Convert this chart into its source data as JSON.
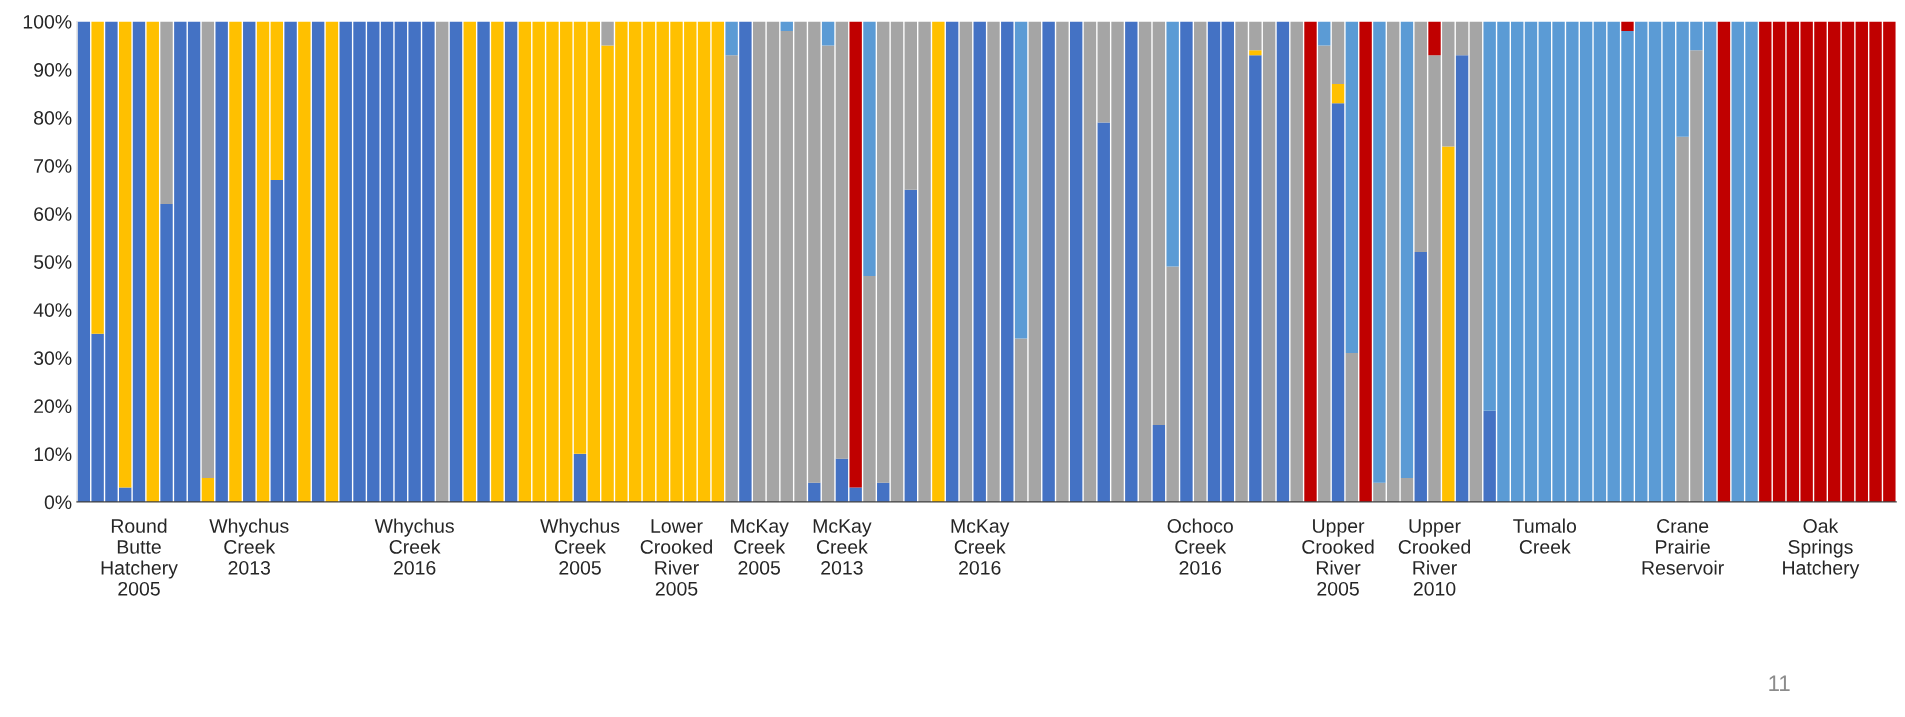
{
  "chart_data": {
    "type": "bar",
    "stacked": true,
    "categories": [
      null,
      null,
      null,
      null,
      "Round\nButte\nHatchery\n2005",
      null,
      null,
      null,
      null,
      null,
      null,
      null,
      "Whychus\nCreek\n2013",
      null,
      null,
      null,
      null,
      null,
      null,
      null,
      null,
      null,
      null,
      null,
      "Whychus\nCreek\n2016",
      null,
      null,
      null,
      null,
      null,
      null,
      null,
      null,
      null,
      null,
      null,
      "Whychus\nCreek\n2005",
      null,
      null,
      null,
      null,
      null,
      null,
      "Lower\nCrooked\nRiver\n2005",
      null,
      null,
      null,
      null,
      null,
      "McKay\nCreek\n2005",
      null,
      null,
      null,
      null,
      null,
      "McKay\nCreek\n2013",
      null,
      null,
      null,
      null,
      null,
      null,
      null,
      null,
      null,
      "McKay\nCreek\n2016",
      null,
      null,
      null,
      null,
      null,
      null,
      null,
      null,
      null,
      null,
      null,
      null,
      null,
      null,
      null,
      "Ochoco\nCreek\n2016",
      null,
      null,
      null,
      null,
      null,
      null,
      null,
      null,
      null,
      "Upper\nCrooked\nRiver\n2005",
      null,
      null,
      null,
      null,
      null,
      null,
      "Upper\nCrooked\nRiver\n2010",
      null,
      null,
      null,
      null,
      null,
      null,
      null,
      "Tumalo\nCreek",
      null,
      null,
      null,
      null,
      null,
      null,
      null,
      null,
      null,
      "Crane\nPrairie\nReservoir",
      null,
      null,
      null,
      null,
      null,
      null,
      null,
      null,
      null,
      "Oak\nSprings\nHatchery",
      null,
      null,
      null,
      null,
      null
    ],
    "series": [
      {
        "color": "#4472c4",
        "values": [
          100,
          35,
          100,
          3,
          100,
          0,
          62,
          100,
          100,
          0,
          100,
          0,
          100,
          0,
          67,
          100,
          0,
          100,
          0,
          100,
          100,
          100,
          100,
          100,
          100,
          100,
          0,
          100,
          0,
          100,
          0,
          100,
          0,
          0,
          0,
          0,
          10,
          0,
          0,
          0,
          0,
          0,
          0,
          0,
          0,
          0,
          0,
          0,
          100,
          0,
          0,
          0,
          0,
          4,
          0,
          9,
          3,
          0,
          4,
          0,
          65,
          0,
          0,
          100,
          0,
          100,
          0,
          100,
          0,
          0,
          100,
          0,
          100,
          0,
          79,
          0,
          100,
          0,
          16,
          0,
          100,
          0,
          100,
          100,
          0,
          93,
          0,
          100,
          0,
          0,
          0,
          83,
          0,
          0,
          0,
          0,
          0,
          52,
          0,
          0,
          93,
          0,
          19,
          0,
          0,
          0,
          0,
          0,
          0,
          0,
          0,
          0,
          0,
          0,
          0,
          0,
          0,
          0,
          0,
          0,
          0,
          0,
          0,
          0,
          0,
          0,
          0,
          0,
          0,
          0,
          0,
          0
        ]
      },
      {
        "color": "#ffc000",
        "values": [
          0,
          65,
          0,
          97,
          0,
          100,
          0,
          0,
          0,
          5,
          0,
          100,
          0,
          100,
          33,
          0,
          100,
          0,
          100,
          0,
          0,
          0,
          0,
          0,
          0,
          0,
          0,
          0,
          100,
          0,
          100,
          0,
          100,
          100,
          100,
          100,
          90,
          100,
          95,
          100,
          100,
          100,
          100,
          100,
          100,
          100,
          100,
          0,
          0,
          0,
          0,
          0,
          0,
          0,
          0,
          0,
          0,
          0,
          0,
          0,
          0,
          0,
          100,
          0,
          0,
          0,
          0,
          0,
          0,
          0,
          0,
          0,
          0,
          0,
          0,
          0,
          0,
          0,
          0,
          0,
          0,
          0,
          0,
          0,
          0,
          1,
          0,
          0,
          0,
          0,
          0,
          4,
          0,
          0,
          0,
          0,
          0,
          0,
          0,
          74,
          0,
          0,
          0,
          0,
          0,
          0,
          0,
          0,
          0,
          0,
          0,
          0,
          0,
          0,
          0,
          0,
          0,
          0,
          0,
          0,
          0,
          0,
          0,
          0,
          0,
          0,
          0,
          0,
          0,
          0,
          0,
          0
        ]
      },
      {
        "color": "#a5a5a5",
        "values": [
          0,
          0,
          0,
          0,
          0,
          0,
          38,
          0,
          0,
          95,
          0,
          0,
          0,
          0,
          0,
          0,
          0,
          0,
          0,
          0,
          0,
          0,
          0,
          0,
          0,
          0,
          100,
          0,
          0,
          0,
          0,
          0,
          0,
          0,
          0,
          0,
          0,
          0,
          5,
          0,
          0,
          0,
          0,
          0,
          0,
          0,
          0,
          93,
          0,
          100,
          100,
          98,
          100,
          96,
          95,
          91,
          0,
          47,
          96,
          100,
          35,
          100,
          0,
          0,
          100,
          0,
          100,
          0,
          34,
          100,
          0,
          100,
          0,
          100,
          21,
          100,
          0,
          100,
          84,
          49,
          0,
          100,
          0,
          0,
          100,
          6,
          100,
          0,
          100,
          0,
          95,
          13,
          31,
          0,
          4,
          100,
          5,
          48,
          93,
          26,
          7,
          100,
          0,
          0,
          0,
          0,
          0,
          0,
          0,
          0,
          0,
          0,
          0,
          0,
          0,
          0,
          76,
          94,
          0,
          0,
          0,
          0,
          0,
          0,
          0,
          0,
          0,
          0,
          0,
          0,
          0,
          0
        ]
      },
      {
        "color": "#5b9bd5",
        "values": [
          0,
          0,
          0,
          0,
          0,
          0,
          0,
          0,
          0,
          0,
          0,
          0,
          0,
          0,
          0,
          0,
          0,
          0,
          0,
          0,
          0,
          0,
          0,
          0,
          0,
          0,
          0,
          0,
          0,
          0,
          0,
          0,
          0,
          0,
          0,
          0,
          0,
          0,
          0,
          0,
          0,
          0,
          0,
          0,
          0,
          0,
          0,
          7,
          0,
          0,
          0,
          2,
          0,
          0,
          5,
          0,
          0,
          53,
          0,
          0,
          0,
          0,
          0,
          0,
          0,
          0,
          0,
          0,
          66,
          0,
          0,
          0,
          0,
          0,
          0,
          0,
          0,
          0,
          0,
          51,
          0,
          0,
          0,
          0,
          0,
          0,
          0,
          0,
          0,
          0,
          5,
          0,
          69,
          0,
          96,
          0,
          95,
          0,
          0,
          0,
          0,
          0,
          81,
          100,
          100,
          100,
          100,
          100,
          100,
          100,
          100,
          100,
          98,
          100,
          100,
          100,
          24,
          6,
          100,
          0,
          100,
          100,
          0,
          0,
          0,
          0,
          0,
          0,
          0,
          0,
          0,
          0
        ]
      },
      {
        "color": "#c00000",
        "values": [
          0,
          0,
          0,
          0,
          0,
          0,
          0,
          0,
          0,
          0,
          0,
          0,
          0,
          0,
          0,
          0,
          0,
          0,
          0,
          0,
          0,
          0,
          0,
          0,
          0,
          0,
          0,
          0,
          0,
          0,
          0,
          0,
          0,
          0,
          0,
          0,
          0,
          0,
          0,
          0,
          0,
          0,
          0,
          0,
          0,
          0,
          0,
          0,
          0,
          0,
          0,
          0,
          0,
          0,
          0,
          0,
          97,
          0,
          0,
          0,
          0,
          0,
          0,
          0,
          0,
          0,
          0,
          0,
          0,
          0,
          0,
          0,
          0,
          0,
          0,
          0,
          0,
          0,
          0,
          0,
          0,
          0,
          0,
          0,
          0,
          0,
          0,
          0,
          0,
          100,
          0,
          0,
          0,
          100,
          0,
          0,
          0,
          0,
          7,
          0,
          0,
          0,
          0,
          0,
          0,
          0,
          0,
          0,
          0,
          0,
          0,
          0,
          2,
          0,
          0,
          0,
          0,
          0,
          0,
          100,
          0,
          0,
          100,
          100,
          100,
          100,
          100,
          100,
          100,
          100,
          100,
          100
        ]
      }
    ],
    "ylim": [
      0,
      100
    ],
    "yticks": [
      {
        "value": 0,
        "label": "0%"
      },
      {
        "value": 10,
        "label": "10%"
      },
      {
        "value": 20,
        "label": "20%"
      },
      {
        "value": 30,
        "label": "30%"
      },
      {
        "value": 40,
        "label": "40%"
      },
      {
        "value": 50,
        "label": "50%"
      },
      {
        "value": 60,
        "label": "60%"
      },
      {
        "value": 70,
        "label": "70%"
      },
      {
        "value": 80,
        "label": "80%"
      },
      {
        "value": 90,
        "label": "90%"
      },
      {
        "value": 100,
        "label": "100%"
      }
    ],
    "annotations": [
      "11"
    ]
  }
}
